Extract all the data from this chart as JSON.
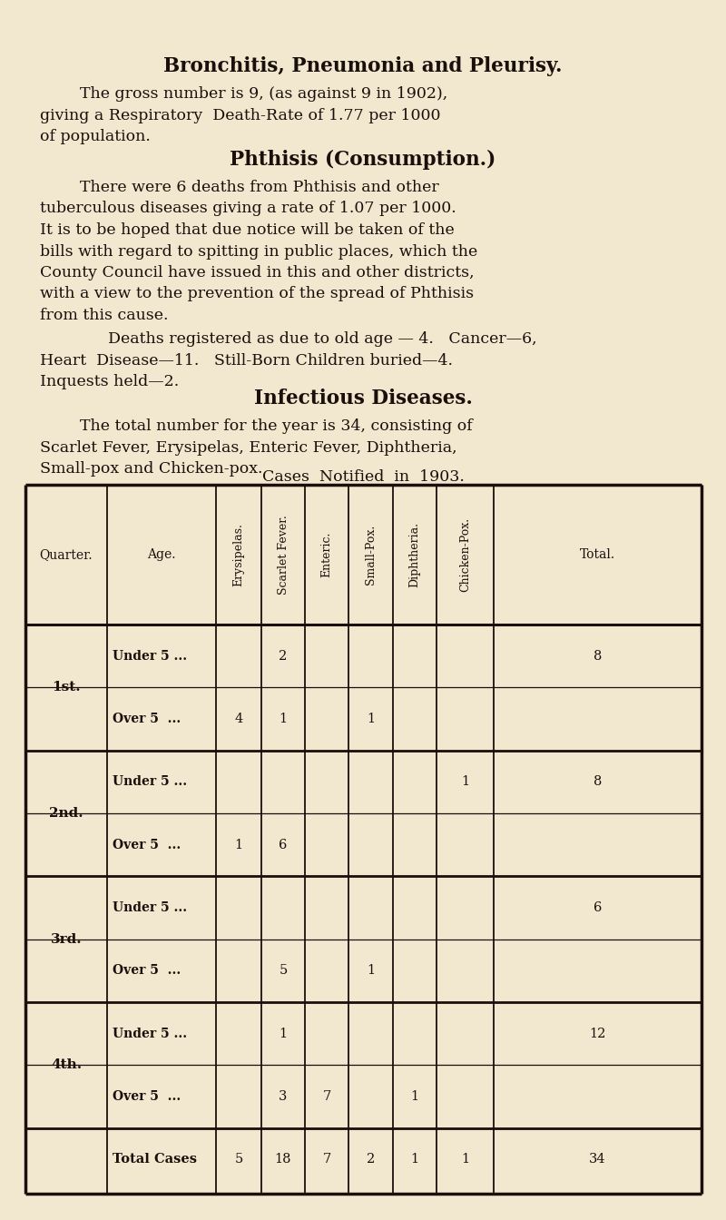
{
  "bg_color": "#f2e8d0",
  "text_color": "#1a0f0a",
  "title1": "Bronchitis, Pneumonia and Pleurisy.",
  "para1_indent": "        The gross number is 9, (as against 9 in 1902),",
  "para1_line2": "giving a Respiratory  Death-Rate of 1.77 per 1000",
  "para1_line3": "of population.",
  "title2": "Phthisis (Consumption.)",
  "para2_indent": "        There were 6 deaths from Phthisis and other",
  "para2_line2": "tuberculous diseases giving a rate of 1.07 per 1000.",
  "para2_line3": "It is to be hoped that due notice will be taken of the",
  "para2_line4": "bills with regard to spitting in public places, which the",
  "para2_line5": "County Council have issued in this and other districts,",
  "para2_line6": "with a view to the prevention of the spread of Phthisis",
  "para2_line7": "from this cause.",
  "para3_indent": "        Deaths registered as due to old age — 4.   Cancer—6,",
  "para3_line2": "Heart  Disease—11.   Still-Born Children buried—4.",
  "para3_line3": "Inquests held—2.",
  "title3": "Infectious Diseases.",
  "para4_indent": "        The total number for the year is 34, consisting of",
  "para4_line2": "Scarlet Fever, Erysipelas, Enteric Fever, Diphtheria,",
  "para4_line3": "Small-pox and Chicken-pox.",
  "table_title": "Cases  Notified  in  1903.",
  "rot_headers": [
    "Erysipelas.",
    "Scarlet Fever.",
    "Enteric.",
    "Small-Pox.",
    "Diphtheria.",
    "Chicken-Pox."
  ],
  "quarter_header": "Quarter.",
  "age_header": "Age.",
  "total_header": "Total.",
  "table_data": [
    [
      "1st.",
      "Under 5 ...",
      "",
      "2",
      "",
      "",
      "",
      "",
      "8"
    ],
    [
      "",
      "Over 5  ...",
      "4",
      "1",
      "",
      "1",
      "",
      "",
      ""
    ],
    [
      "2nd.",
      "Under 5 ...",
      "",
      "",
      "",
      "",
      "",
      "1",
      "8"
    ],
    [
      "",
      "Over 5  ...",
      "1",
      "6",
      "",
      "",
      "",
      "",
      ""
    ],
    [
      "3rd.",
      "Under 5 ...",
      "",
      "",
      "",
      "",
      "",
      "",
      "6"
    ],
    [
      "",
      "Over 5  ...",
      "",
      "5",
      "",
      "1",
      "",
      "",
      ""
    ],
    [
      "4th.",
      "Under 5 ...",
      "",
      "1",
      "",
      "",
      "",
      "",
      "12"
    ],
    [
      "",
      "Over 5  ...",
      "",
      "3",
      "7",
      "",
      "1",
      "",
      ""
    ],
    [
      "",
      "Total Cases",
      "5",
      "18",
      "7",
      "2",
      "1",
      "1",
      "34"
    ]
  ]
}
